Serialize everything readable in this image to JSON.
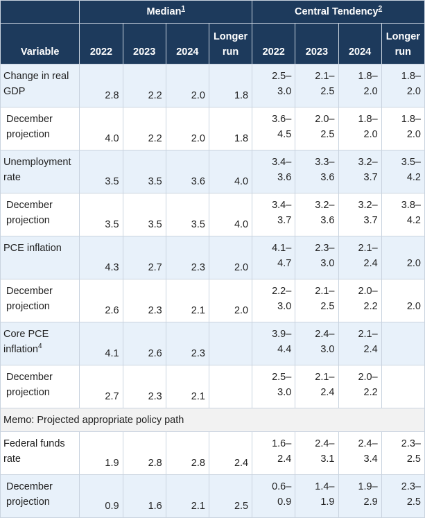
{
  "header": {
    "median_label": "Median",
    "median_note": "1",
    "ct_label": "Central Tendency",
    "ct_note": "2",
    "variable": "Variable",
    "years": [
      "2022",
      "2023",
      "2024"
    ],
    "longer_1": "Longer",
    "longer_2": "run"
  },
  "rows": [
    {
      "label_1": "Change in real",
      "label_2": "GDP",
      "median": [
        "2.8",
        "2.2",
        "2.0",
        "1.8"
      ],
      "ct_top": [
        "2.5–",
        "2.1–",
        "1.8–",
        "1.8–"
      ],
      "ct_bot": [
        "3.0",
        "2.5",
        "2.0",
        "2.0"
      ]
    },
    {
      "label_1": "December",
      "label_2": "projection",
      "median": [
        "4.0",
        "2.2",
        "2.0",
        "1.8"
      ],
      "ct_top": [
        "3.6–",
        "2.0–",
        "1.8–",
        "1.8–"
      ],
      "ct_bot": [
        "4.5",
        "2.5",
        "2.0",
        "2.0"
      ]
    },
    {
      "label_1": "Unemployment",
      "label_2": "rate",
      "median": [
        "3.5",
        "3.5",
        "3.6",
        "4.0"
      ],
      "ct_top": [
        "3.4–",
        "3.3–",
        "3.2–",
        "3.5–"
      ],
      "ct_bot": [
        "3.6",
        "3.6",
        "3.7",
        "4.2"
      ]
    },
    {
      "label_1": "December",
      "label_2": "projection",
      "median": [
        "3.5",
        "3.5",
        "3.5",
        "4.0"
      ],
      "ct_top": [
        "3.4–",
        "3.2–",
        "3.2–",
        "3.8–"
      ],
      "ct_bot": [
        "3.7",
        "3.6",
        "3.7",
        "4.2"
      ]
    },
    {
      "label_1": "PCE inflation",
      "label_2": "",
      "median": [
        "4.3",
        "2.7",
        "2.3",
        "2.0"
      ],
      "ct_top": [
        "4.1–",
        "2.3–",
        "2.1–",
        ""
      ],
      "ct_bot": [
        "4.7",
        "3.0",
        "2.4",
        "2.0"
      ]
    },
    {
      "label_1": "December",
      "label_2": "projection",
      "median": [
        "2.6",
        "2.3",
        "2.1",
        "2.0"
      ],
      "ct_top": [
        "2.2–",
        "2.1–",
        "2.0–",
        ""
      ],
      "ct_bot": [
        "3.0",
        "2.5",
        "2.2",
        "2.0"
      ]
    },
    {
      "label_1": "Core PCE",
      "label_2": "inflation",
      "label_note": "4",
      "median": [
        "4.1",
        "2.6",
        "2.3",
        ""
      ],
      "ct_top": [
        "3.9–",
        "2.4–",
        "2.1–",
        ""
      ],
      "ct_bot": [
        "4.4",
        "3.0",
        "2.4",
        ""
      ]
    },
    {
      "label_1": "December",
      "label_2": "projection",
      "median": [
        "2.7",
        "2.3",
        "2.1",
        ""
      ],
      "ct_top": [
        "2.5–",
        "2.1–",
        "2.0–",
        ""
      ],
      "ct_bot": [
        "3.0",
        "2.4",
        "2.2",
        ""
      ]
    }
  ],
  "memo": "Memo: Projected appropriate policy path",
  "policy_rows": [
    {
      "label_1": "Federal funds",
      "label_2": "rate",
      "median": [
        "1.9",
        "2.8",
        "2.8",
        "2.4"
      ],
      "ct_top": [
        "1.6–",
        "2.4–",
        "2.4–",
        "2.3–"
      ],
      "ct_bot": [
        "2.4",
        "3.1",
        "3.4",
        "2.5"
      ]
    },
    {
      "label_1": "December",
      "label_2": "projection",
      "median": [
        "0.9",
        "1.6",
        "2.1",
        "2.5"
      ],
      "ct_top": [
        "0.6–",
        "1.4–",
        "1.9–",
        "2.3–"
      ],
      "ct_bot": [
        "0.9",
        "1.9",
        "2.9",
        "2.5"
      ]
    }
  ],
  "colors": {
    "header_bg": "#1d3a5c",
    "shade_bg": "#e8f1fa",
    "memo_bg": "#f2f2f2"
  }
}
